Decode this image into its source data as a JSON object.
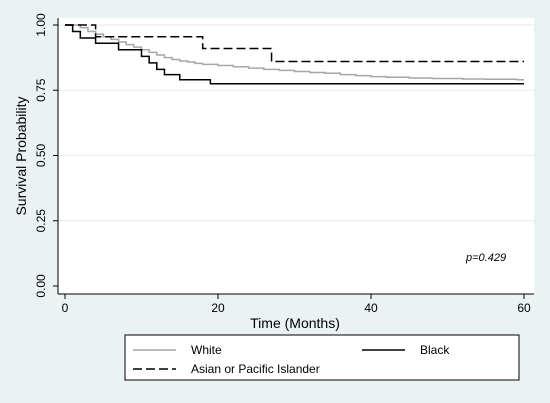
{
  "chart_data": {
    "type": "line",
    "subtype": "kaplan-meier step",
    "xlabel": "Time (Months)",
    "ylabel": "Survival Probability",
    "xlim": [
      0,
      60
    ],
    "ylim": [
      0,
      1
    ],
    "x_ticks": [
      0,
      20,
      40,
      60
    ],
    "y_ticks": [
      "0.00",
      "0.25",
      "0.50",
      "0.75",
      "1.00"
    ],
    "grid": "horizontal",
    "legend_position": "bottom",
    "annotation": "p=0.429",
    "series": [
      {
        "name": "White",
        "color": "#a6a6a6",
        "dash": "solid",
        "points": [
          [
            0,
            1.0
          ],
          [
            2,
            0.99
          ],
          [
            3,
            0.975
          ],
          [
            4,
            0.965
          ],
          [
            5,
            0.955
          ],
          [
            6,
            0.945
          ],
          [
            7,
            0.935
          ],
          [
            8,
            0.925
          ],
          [
            9,
            0.915
          ],
          [
            10,
            0.905
          ],
          [
            11,
            0.895
          ],
          [
            12,
            0.885
          ],
          [
            13,
            0.875
          ],
          [
            14,
            0.868
          ],
          [
            15,
            0.862
          ],
          [
            16,
            0.858
          ],
          [
            17,
            0.853
          ],
          [
            18,
            0.849
          ],
          [
            20,
            0.845
          ],
          [
            22,
            0.84
          ],
          [
            24,
            0.835
          ],
          [
            26,
            0.83
          ],
          [
            28,
            0.826
          ],
          [
            30,
            0.822
          ],
          [
            32,
            0.818
          ],
          [
            34,
            0.815
          ],
          [
            36,
            0.81
          ],
          [
            38,
            0.806
          ],
          [
            40,
            0.802
          ],
          [
            42,
            0.8
          ],
          [
            45,
            0.797
          ],
          [
            48,
            0.795
          ],
          [
            52,
            0.793
          ],
          [
            55,
            0.792
          ],
          [
            59,
            0.79
          ],
          [
            60,
            0.79
          ]
        ]
      },
      {
        "name": "Black",
        "color": "#000000",
        "dash": "solid",
        "points": [
          [
            0,
            1.0
          ],
          [
            1,
            0.975
          ],
          [
            2,
            0.95
          ],
          [
            4,
            0.93
          ],
          [
            7,
            0.905
          ],
          [
            10,
            0.88
          ],
          [
            11,
            0.855
          ],
          [
            12,
            0.83
          ],
          [
            13,
            0.81
          ],
          [
            15,
            0.79
          ],
          [
            19,
            0.775
          ],
          [
            60,
            0.775
          ]
        ]
      },
      {
        "name": "Asian or Pacific Islander",
        "color": "#000000",
        "dash": "dashed",
        "points": [
          [
            0,
            1.0
          ],
          [
            4,
            0.955
          ],
          [
            18,
            0.91
          ],
          [
            27,
            0.86
          ],
          [
            60,
            0.86
          ]
        ]
      }
    ]
  }
}
